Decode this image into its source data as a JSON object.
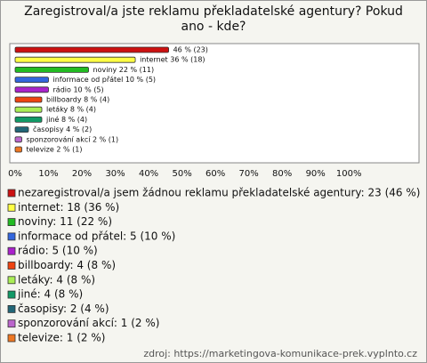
{
  "chart_data": {
    "type": "bar",
    "orientation": "horizontal",
    "title": "Zaregistroval/a jste reklamu překladatelské agentury? Pokud ano - kde?",
    "categories": [
      "nezaregistroval/a jsem žádnou reklamu překladatelské agentury",
      "internet",
      "noviny",
      "informace od přátel",
      "rádio",
      "billboardy",
      "letáky",
      "jiné",
      "časopisy",
      "sponzorování akcí",
      "televize"
    ],
    "values": [
      46,
      36,
      22,
      10,
      10,
      8,
      8,
      8,
      4,
      2,
      2
    ],
    "value_labels": [
      "46 % (23)",
      "internet 36 % (18)",
      "noviny 22 % (11)",
      "informace od přátel 10 % (5)",
      "rádio 10 % (5)",
      "billboardy 8 % (4)",
      "letáky 8 % (4)",
      "jiné 8 % (4)",
      "časopisy 4 % (2)",
      "sponzorování akcí 2 % (1)",
      "televize 2 % (1)"
    ],
    "colors": [
      "#cc1111",
      "#ffff44",
      "#22bb22",
      "#3366dd",
      "#aa22cc",
      "#ee4411",
      "#aaee55",
      "#119966",
      "#226677",
      "#bb66cc",
      "#ee7722"
    ],
    "legend": [
      "nezaregistroval/a jsem žádnou reklamu překladatelské agentury: 23 (46 %)",
      "internet: 18 (36 %)",
      "noviny: 11 (22 %)",
      "informace od přátel: 5 (10 %)",
      "rádio: 5 (10 %)",
      "billboardy: 4 (8 %)",
      "letáky: 4 (8 %)",
      "jiné: 4 (8 %)",
      "časopisy: 2 (4 %)",
      "sponzorování akcí: 1 (2 %)",
      "televize: 1 (2 %)"
    ],
    "xlim": [
      0,
      121
    ],
    "xticks": [
      {
        "value": 0,
        "label": "0%"
      },
      {
        "value": 10,
        "label": "10%"
      },
      {
        "value": 20,
        "label": "20%"
      },
      {
        "value": 30,
        "label": "30%"
      },
      {
        "value": 40,
        "label": "40%"
      },
      {
        "value": 50,
        "label": "50%"
      },
      {
        "value": 60,
        "label": "60%"
      },
      {
        "value": 70,
        "label": "70%"
      },
      {
        "value": 80,
        "label": "80%"
      },
      {
        "value": 90,
        "label": "90%"
      },
      {
        "value": 100,
        "label": "100%"
      }
    ],
    "grid": false,
    "source": "zdroj: https://marketingova-komunikace-prek.vyplnto.cz"
  }
}
